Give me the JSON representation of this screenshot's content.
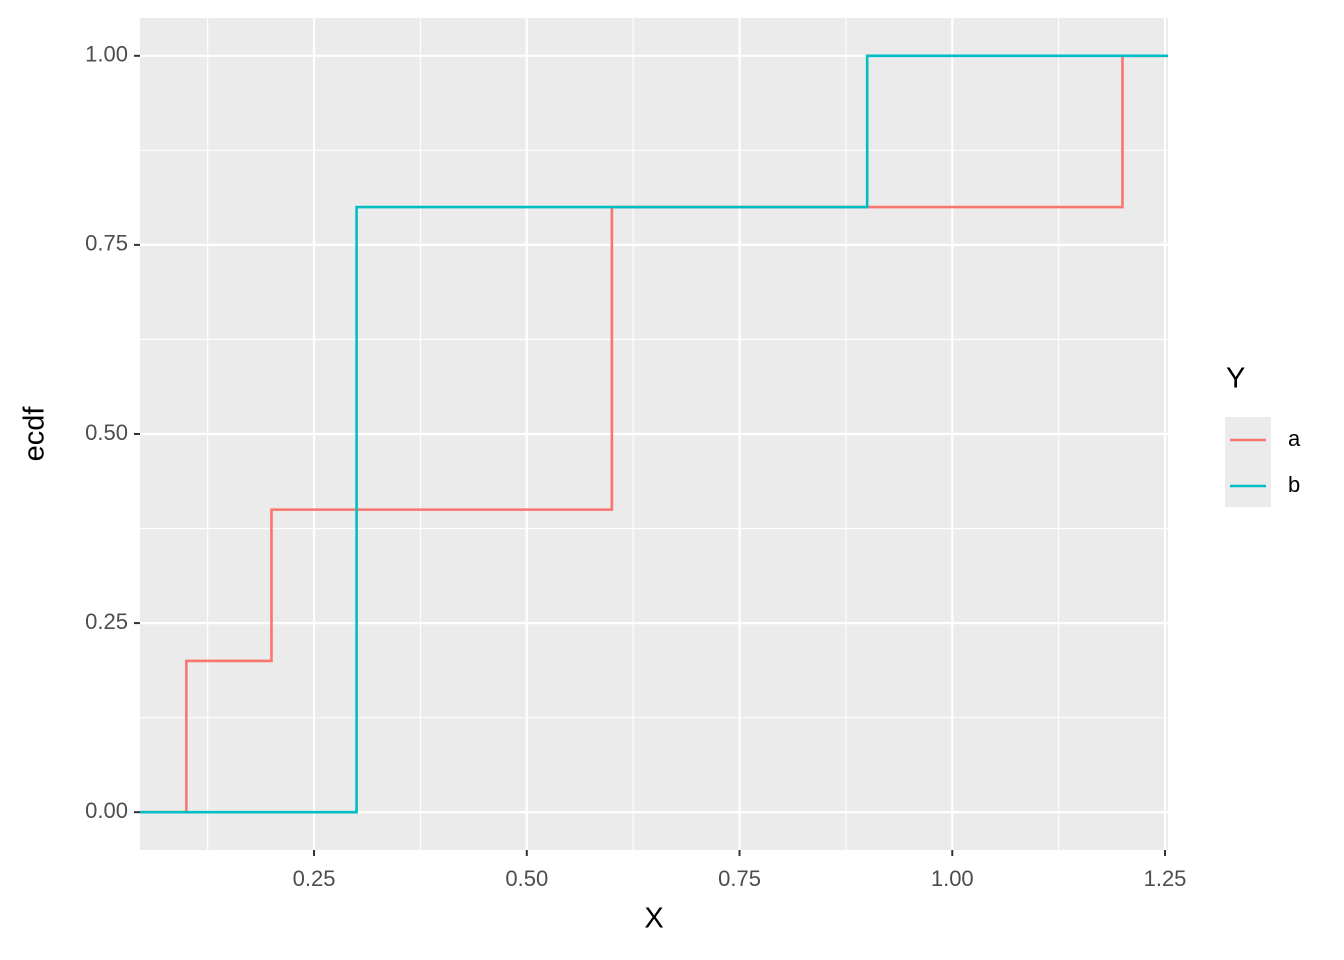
{
  "chart_data": {
    "type": "step",
    "x_label": "X",
    "y_label": "ecdf",
    "legend_title": "Y",
    "xlim": [
      0.0455,
      1.2535
    ],
    "ylim": [
      -0.05,
      1.05
    ],
    "xticks": [
      {
        "value": 0.25,
        "label": "0.25"
      },
      {
        "value": 0.5,
        "label": "0.50"
      },
      {
        "value": 0.75,
        "label": "0.75"
      },
      {
        "value": 1,
        "label": "1.00"
      },
      {
        "value": 1.25,
        "label": "1.25"
      }
    ],
    "yticks": [
      {
        "value": 0,
        "label": "0.00"
      },
      {
        "value": 0.25,
        "label": "0.25"
      },
      {
        "value": 0.5,
        "label": "0.50"
      },
      {
        "value": 0.75,
        "label": "0.75"
      },
      {
        "value": 1,
        "label": "1.00"
      }
    ],
    "grid": true,
    "legend": "right",
    "series": [
      {
        "name": "a",
        "color": "#F8766D",
        "x": [
          0.0455,
          0.1,
          0.2,
          0.6,
          1.2
        ],
        "values": [
          0,
          0.2,
          0.4,
          0.8,
          1
        ]
      },
      {
        "name": "b",
        "color": "#00BFC4",
        "x": [
          0.0455,
          0.3,
          0.9
        ],
        "values": [
          0,
          0.8,
          1
        ]
      }
    ]
  }
}
